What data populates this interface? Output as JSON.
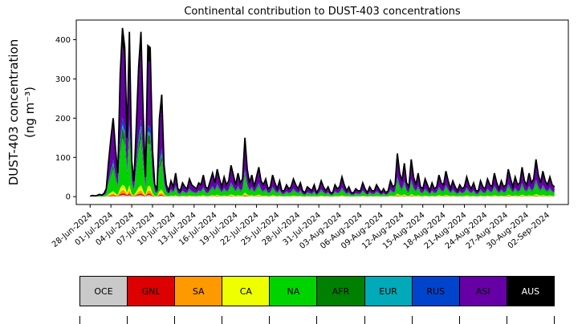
{
  "chart_data": {
    "type": "area",
    "stacked": true,
    "title": "Continental contribution to DUST-403 concentrations",
    "ylabel_line1": "DUST-403 concentration",
    "ylabel_line2": "(ng m⁻³)",
    "xlabel": "",
    "grid": false,
    "legend_position": "bottom",
    "ylim": [
      -20,
      450
    ],
    "yticks": [
      0,
      100,
      200,
      300,
      400
    ],
    "xtick_spacing_days": 3,
    "samples_per_day": 3,
    "xtick_labels": [
      "28-Jun-2024",
      "01-Jul-2024",
      "04-Jul-2024",
      "07-Jul-2024",
      "10-Jul-2024",
      "13-Jul-2024",
      "16-Jul-2024",
      "19-Jul-2024",
      "22-Jul-2024",
      "25-Jul-2024",
      "28-Jul-2024",
      "31-Jul-2024",
      "03-Aug-2024",
      "06-Aug-2024",
      "09-Aug-2024",
      "12-Aug-2024",
      "15-Aug-2024",
      "18-Aug-2024",
      "21-Aug-2024",
      "24-Aug-2024",
      "27-Aug-2024",
      "30-Aug-2024",
      "02-Sep-2024"
    ],
    "total_concentration": [
      1,
      3,
      2,
      3,
      6,
      4,
      8,
      20,
      90,
      150,
      200,
      120,
      60,
      310,
      430,
      380,
      150,
      420,
      90,
      40,
      180,
      330,
      420,
      200,
      50,
      385,
      380,
      120,
      30,
      20,
      200,
      260,
      80,
      30,
      15,
      40,
      25,
      60,
      20,
      15,
      35,
      25,
      20,
      45,
      30,
      25,
      20,
      35,
      30,
      55,
      25,
      20,
      40,
      60,
      35,
      70,
      45,
      25,
      50,
      30,
      40,
      80,
      55,
      30,
      60,
      35,
      45,
      150,
      70,
      35,
      55,
      25,
      50,
      75,
      40,
      30,
      45,
      20,
      25,
      55,
      35,
      20,
      40,
      15,
      15,
      30,
      20,
      25,
      45,
      30,
      20,
      35,
      15,
      10,
      25,
      20,
      15,
      30,
      10,
      20,
      40,
      25,
      15,
      25,
      10,
      10,
      30,
      20,
      25,
      50,
      30,
      15,
      25,
      10,
      10,
      20,
      15,
      15,
      35,
      20,
      10,
      25,
      15,
      15,
      30,
      20,
      10,
      20,
      10,
      15,
      40,
      25,
      30,
      110,
      60,
      40,
      85,
      35,
      25,
      95,
      50,
      30,
      60,
      25,
      20,
      45,
      30,
      15,
      35,
      20,
      25,
      55,
      35,
      30,
      65,
      40,
      20,
      40,
      25,
      15,
      30,
      20,
      25,
      50,
      30,
      20,
      35,
      15,
      15,
      40,
      25,
      20,
      45,
      30,
      25,
      60,
      35,
      20,
      40,
      25,
      30,
      70,
      45,
      25,
      50,
      30,
      35,
      75,
      40,
      30,
      60,
      35,
      45,
      95,
      55,
      35,
      65,
      40,
      30,
      50,
      30,
      25
    ],
    "series_stack_order": [
      "OCE",
      "GNL",
      "SA",
      "CA",
      "NA",
      "AFR",
      "EUR",
      "RUS",
      "ASI",
      "AUS"
    ],
    "series_fractions": {
      "OCE": 0.01,
      "GNL": 0.01,
      "SA": 0.02,
      "CA": 0.03,
      "NA": 0.28,
      "AFR": 0.06,
      "EUR": 0.02,
      "RUS": 0.04,
      "ASI": 0.43,
      "AUS": 0.1
    },
    "total_line_color": "#000000",
    "legend": [
      {
        "label": "OCE",
        "color": "#c9c9c9",
        "text_color": "#000000"
      },
      {
        "label": "GNL",
        "color": "#dd0000",
        "text_color": "#000000"
      },
      {
        "label": "SA",
        "color": "#ff9900",
        "text_color": "#000000"
      },
      {
        "label": "CA",
        "color": "#eeff00",
        "text_color": "#000000"
      },
      {
        "label": "NA",
        "color": "#00d400",
        "text_color": "#000000"
      },
      {
        "label": "AFR",
        "color": "#008000",
        "text_color": "#000000"
      },
      {
        "label": "EUR",
        "color": "#00aab8",
        "text_color": "#000000"
      },
      {
        "label": "RUS",
        "color": "#0044cc",
        "text_color": "#000000"
      },
      {
        "label": "ASI",
        "color": "#6600a6",
        "text_color": "#000000"
      },
      {
        "label": "AUS",
        "color": "#000000",
        "text_color": "#ffffff"
      }
    ]
  }
}
